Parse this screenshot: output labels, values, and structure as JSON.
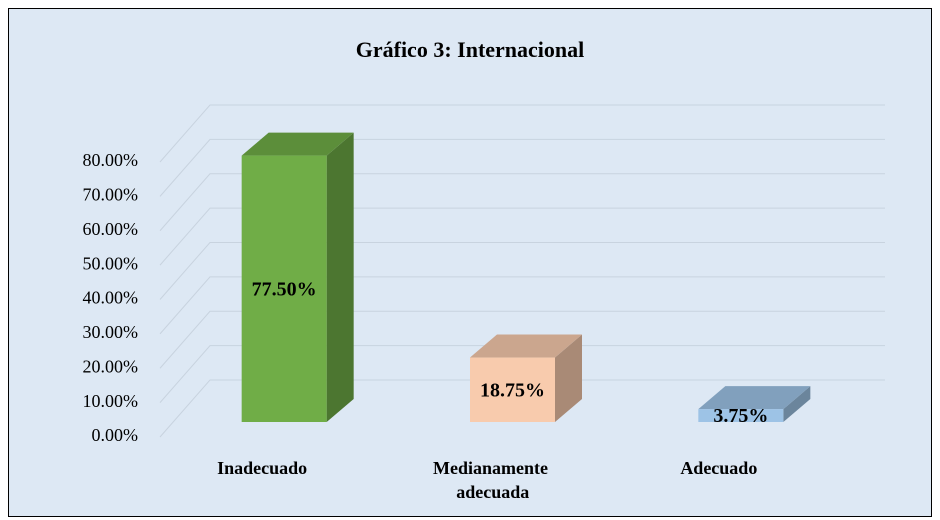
{
  "chart_data": {
    "type": "bar3d",
    "title": "Gráfico 3: Internacional",
    "categories": [
      "Inadecuado",
      "Medianamente adecuada",
      "Adecuado"
    ],
    "values": [
      77.5,
      18.75,
      3.75
    ],
    "value_labels": [
      "77.50%",
      "18.75%",
      "3.75%"
    ],
    "colors": [
      "#70ad47",
      "#f8cbad",
      "#9dc3e6"
    ],
    "ylim": [
      0,
      80
    ],
    "yticks": [
      {
        "value": 0,
        "label": "0.00%"
      },
      {
        "value": 10,
        "label": "10.00%"
      },
      {
        "value": 20,
        "label": "20.00%"
      },
      {
        "value": 30,
        "label": "30.00%"
      },
      {
        "value": 40,
        "label": "40.00%"
      },
      {
        "value": 50,
        "label": "50.00%"
      },
      {
        "value": 60,
        "label": "60.00%"
      },
      {
        "value": 70,
        "label": "70.00%"
      },
      {
        "value": 80,
        "label": "80.00%"
      }
    ],
    "grid": true
  }
}
